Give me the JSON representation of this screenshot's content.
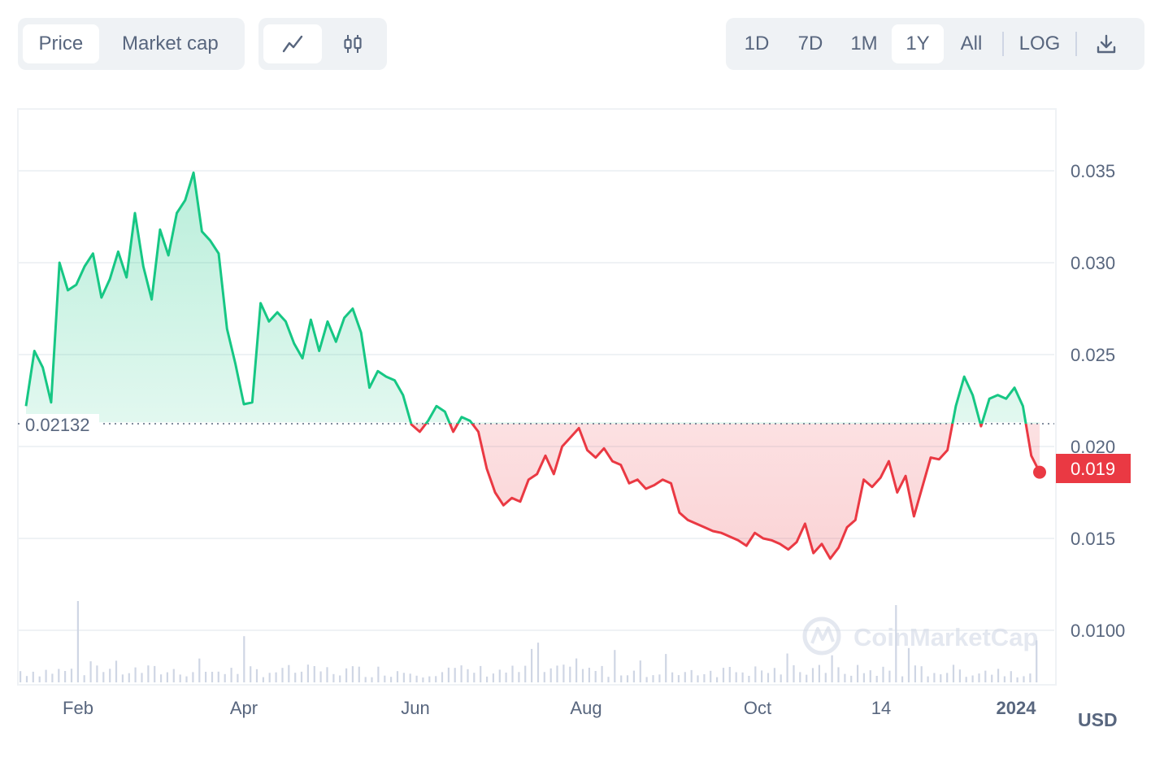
{
  "toolbar": {
    "metric_tabs": [
      {
        "label": "Price",
        "active": true
      },
      {
        "label": "Market cap",
        "active": false
      }
    ],
    "chart_type_icons": [
      {
        "icon": "line-chart-icon",
        "active": true
      },
      {
        "icon": "candlestick-icon",
        "active": false
      }
    ],
    "range_tabs": [
      {
        "label": "1D",
        "active": false
      },
      {
        "label": "7D",
        "active": false
      },
      {
        "label": "1M",
        "active": false
      },
      {
        "label": "1Y",
        "active": true
      },
      {
        "label": "All",
        "active": false
      }
    ],
    "log_label": "LOG",
    "download_icon": "download-icon"
  },
  "currency": "USD",
  "watermark": "CoinMarketCap",
  "colors": {
    "up": "#16c784",
    "down": "#ea3943",
    "grid": "#eff2f5",
    "text": "#58667e"
  },
  "chart_data": {
    "type": "line",
    "ylim": [
      0.0075,
      0.038
    ],
    "y_ticks": [
      "0.035",
      "0.030",
      "0.025",
      "0.020",
      "0.015",
      "0.0100"
    ],
    "x_tick_labels": [
      "Feb",
      "Apr",
      "Jun",
      "Aug",
      "Oct",
      "14",
      "2024"
    ],
    "baseline": {
      "value": 0.02132,
      "label": "0.02132"
    },
    "current_price": {
      "value": 0.0186,
      "label": "0.019"
    },
    "x": [
      0,
      3,
      6,
      9,
      12,
      15,
      18,
      21,
      24,
      27,
      30,
      33,
      36,
      39,
      42,
      45,
      48,
      51,
      54,
      57,
      60,
      63,
      66,
      69,
      72,
      75,
      78,
      81,
      84,
      87,
      90,
      93,
      96,
      99,
      102,
      105,
      108,
      111,
      114,
      117,
      120,
      123,
      126,
      129,
      132,
      135,
      138,
      141,
      144,
      147,
      150,
      153,
      156,
      159,
      162,
      165,
      168,
      171,
      174,
      177,
      180,
      183,
      186,
      189,
      192,
      195,
      198,
      201,
      204,
      207,
      210,
      213,
      216,
      219,
      222,
      225,
      228,
      231,
      234,
      237,
      240,
      243,
      246,
      249,
      252,
      255,
      258,
      261,
      264,
      267,
      270,
      273,
      276,
      279,
      282,
      285,
      288,
      291,
      294,
      297,
      300,
      303,
      306,
      309,
      312,
      315,
      318,
      321,
      324,
      327,
      330,
      333,
      336,
      339,
      342,
      345,
      348,
      351,
      354,
      357,
      360,
      363
    ],
    "values": [
      0.0222,
      0.0252,
      0.0243,
      0.0224,
      0.03,
      0.0285,
      0.0288,
      0.0298,
      0.0305,
      0.0281,
      0.0291,
      0.0306,
      0.0292,
      0.0327,
      0.0298,
      0.028,
      0.0318,
      0.0304,
      0.0327,
      0.0334,
      0.0349,
      0.0317,
      0.0312,
      0.0305,
      0.0264,
      0.0245,
      0.0223,
      0.0224,
      0.0278,
      0.0268,
      0.0273,
      0.0268,
      0.0256,
      0.0248,
      0.0269,
      0.0252,
      0.0268,
      0.0257,
      0.027,
      0.0275,
      0.0262,
      0.0232,
      0.0241,
      0.0238,
      0.0236,
      0.0228,
      0.0212,
      0.0208,
      0.0214,
      0.0222,
      0.0219,
      0.0208,
      0.0216,
      0.0214,
      0.0208,
      0.0188,
      0.0175,
      0.0168,
      0.0172,
      0.017,
      0.0182,
      0.0185,
      0.0195,
      0.0185,
      0.02,
      0.0205,
      0.021,
      0.0198,
      0.0194,
      0.0199,
      0.0192,
      0.019,
      0.018,
      0.0182,
      0.0177,
      0.0179,
      0.0182,
      0.018,
      0.0164,
      0.016,
      0.0158,
      0.0156,
      0.0154,
      0.0153,
      0.0151,
      0.0149,
      0.0146,
      0.0153,
      0.015,
      0.0149,
      0.0147,
      0.0144,
      0.0148,
      0.0158,
      0.0142,
      0.0147,
      0.0139,
      0.0145,
      0.0156,
      0.016,
      0.0182,
      0.0178,
      0.0183,
      0.0192,
      0.0175,
      0.0184,
      0.0162,
      0.0178,
      0.0194,
      0.0193,
      0.0198,
      0.0222,
      0.0238,
      0.0228,
      0.0211,
      0.0226,
      0.0228,
      0.0226,
      0.0232,
      0.0222,
      0.0195,
      0.0186
    ],
    "volume_bars": 160
  }
}
